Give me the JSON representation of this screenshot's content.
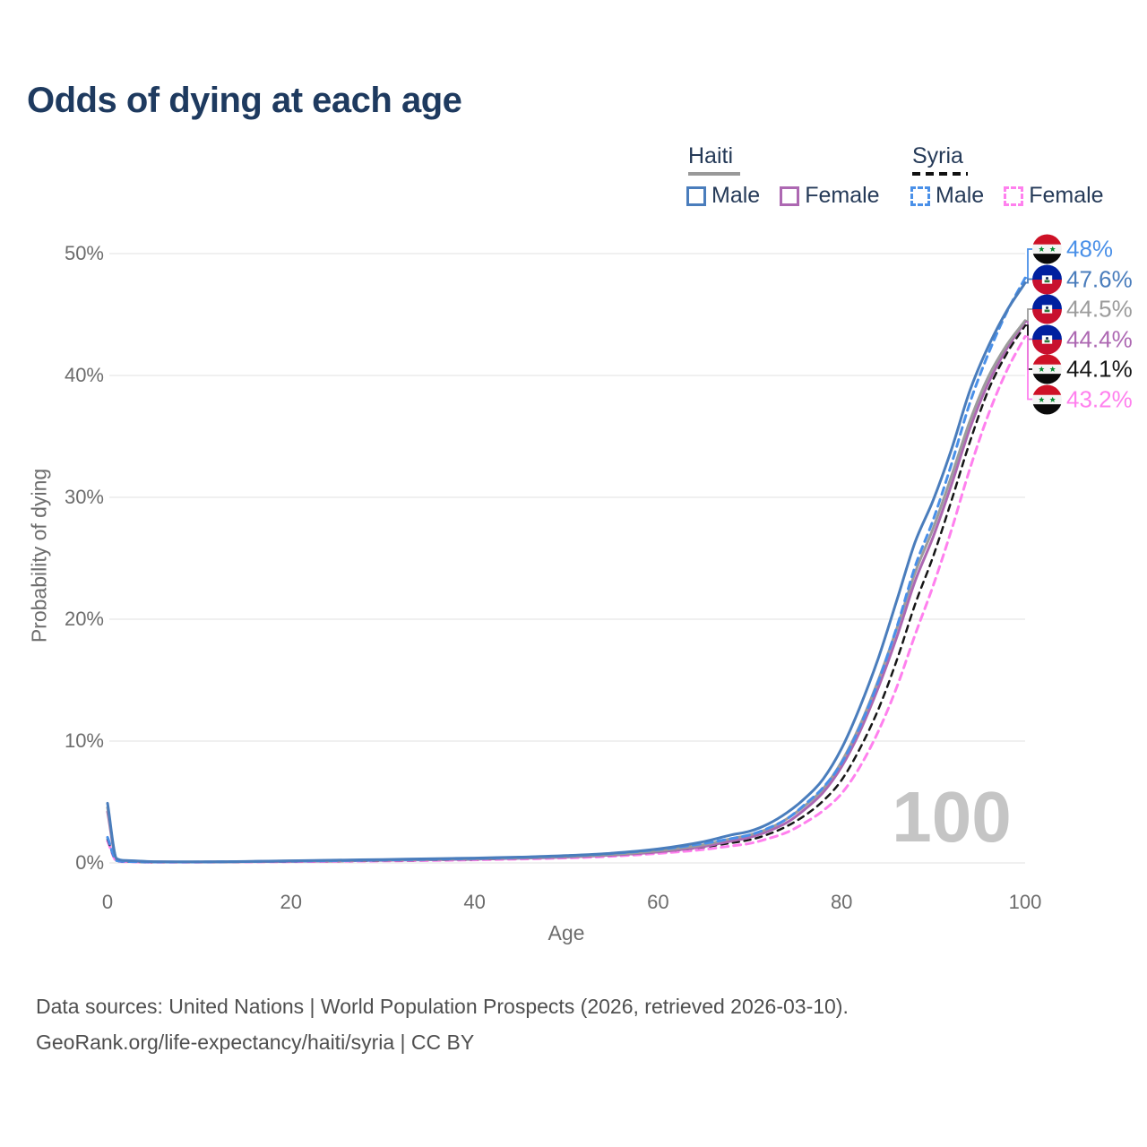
{
  "title": "Odds of dying at each age",
  "watermark": "100",
  "legend": {
    "haiti": {
      "label": "Haiti",
      "male_label": "Male",
      "female_label": "Female",
      "underline_style": "solid",
      "underline_color": "#999999"
    },
    "syria": {
      "label": "Syria",
      "male_label": "Male",
      "female_label": "Female",
      "underline_style": "dashed",
      "underline_color": "#111111"
    }
  },
  "footer": {
    "line1": "Data sources: United Nations | World Population Prospects (2026, retrieved 2026-03-10).",
    "line2": "GeoRank.org/life-expectancy/haiti/syria | CC BY"
  },
  "colors": {
    "title_text": "#1e3a5f",
    "legend_text": "#253a58",
    "axis_text": "#6d6d6d",
    "gridline": "#ebebeb",
    "watermark": "#c5c5c5",
    "haiti_male": "#4a7dbc",
    "haiti_female": "#ad68b2",
    "haiti_average": "#9c9c9c",
    "syria_male": "#4a90e8",
    "syria_female": "#ff80ee",
    "syria_average": "#161616"
  },
  "chart_data": {
    "type": "line",
    "title": "Odds of dying at each age",
    "xlabel": "Age",
    "ylabel": "Probability of dying",
    "xlim": [
      0,
      100
    ],
    "ylim": [
      0,
      50
    ],
    "grid": true,
    "legend_position": "top-right",
    "x_ticks": [
      0,
      20,
      40,
      60,
      80,
      100
    ],
    "y_ticks": [
      0,
      10,
      20,
      30,
      40,
      50
    ],
    "y_tick_labels": [
      "0%",
      "10%",
      "20%",
      "30%",
      "40%",
      "50%"
    ],
    "x": [
      0,
      1,
      2,
      5,
      10,
      15,
      20,
      25,
      30,
      35,
      40,
      45,
      50,
      55,
      60,
      65,
      68,
      70,
      72,
      74,
      76,
      78,
      80,
      82,
      84,
      86,
      88,
      90,
      92,
      94,
      96,
      98,
      100
    ],
    "series": [
      {
        "id": "syria-female",
        "name": "Syria Female",
        "country": "Syria",
        "flag": "syria",
        "color": "#ff80ee",
        "dash": "8 6",
        "width": 3,
        "end_label": "43.2%",
        "end_value": 43.2,
        "values": [
          1.8,
          0.16,
          0.1,
          0.05,
          0.06,
          0.08,
          0.1,
          0.13,
          0.16,
          0.2,
          0.25,
          0.32,
          0.41,
          0.55,
          0.78,
          1.1,
          1.4,
          1.6,
          2.0,
          2.5,
          3.3,
          4.3,
          5.7,
          7.9,
          10.8,
          14.4,
          18.7,
          22.8,
          27.4,
          32.4,
          36.8,
          40.4,
          43.2
        ]
      },
      {
        "id": "syria-average",
        "name": "Syria",
        "country": "Syria",
        "flag": "syria",
        "color": "#161616",
        "dash": "7 6",
        "width": 2.5,
        "end_label": "44.1%",
        "end_value": 44.1,
        "values": [
          1.95,
          0.18,
          0.11,
          0.06,
          0.07,
          0.09,
          0.12,
          0.15,
          0.19,
          0.24,
          0.3,
          0.38,
          0.48,
          0.64,
          0.9,
          1.3,
          1.65,
          1.9,
          2.35,
          3.0,
          3.9,
          5.1,
          6.8,
          9.4,
          12.6,
          16.6,
          21.2,
          25.2,
          29.8,
          34.6,
          38.8,
          41.8,
          44.1
        ]
      },
      {
        "id": "haiti-female",
        "name": "Haiti Female",
        "country": "Haiti",
        "flag": "haiti",
        "color": "#ad68b2",
        "dash": null,
        "width": 3,
        "end_label": "44.4%",
        "end_value": 44.4,
        "values": [
          4.2,
          0.3,
          0.16,
          0.08,
          0.07,
          0.1,
          0.13,
          0.17,
          0.21,
          0.26,
          0.32,
          0.38,
          0.48,
          0.64,
          0.9,
          1.35,
          1.8,
          2.1,
          2.6,
          3.3,
          4.4,
          5.8,
          7.9,
          10.8,
          14.4,
          18.5,
          23.1,
          26.8,
          31.1,
          35.7,
          39.4,
          42.2,
          44.4
        ]
      },
      {
        "id": "haiti-average",
        "name": "Haiti",
        "country": "Haiti",
        "flag": "haiti",
        "color": "#9c9c9c",
        "dash": null,
        "width": 3,
        "end_label": "44.5%",
        "end_value": 44.5,
        "values": [
          4.55,
          0.33,
          0.18,
          0.09,
          0.08,
          0.11,
          0.16,
          0.2,
          0.24,
          0.29,
          0.35,
          0.42,
          0.53,
          0.7,
          1.0,
          1.5,
          2.0,
          2.3,
          2.8,
          3.6,
          4.7,
          6.1,
          8.3,
          11.3,
          15.0,
          19.2,
          23.8,
          27.5,
          31.8,
          36.3,
          39.9,
          42.5,
          44.5
        ]
      },
      {
        "id": "syria-male",
        "name": "Syria Male",
        "country": "Syria",
        "flag": "syria",
        "color": "#4a90e8",
        "dash": "8 6",
        "width": 3,
        "end_label": "48%",
        "end_value": 48.0,
        "values": [
          2.1,
          0.2,
          0.12,
          0.07,
          0.08,
          0.11,
          0.15,
          0.19,
          0.24,
          0.3,
          0.37,
          0.46,
          0.58,
          0.78,
          1.1,
          1.6,
          2.0,
          2.3,
          2.85,
          3.6,
          4.8,
          6.2,
          8.2,
          11.2,
          14.9,
          19.3,
          24.3,
          28.2,
          32.8,
          37.8,
          41.8,
          45.2,
          48.0
        ]
      },
      {
        "id": "haiti-male",
        "name": "Haiti Male",
        "country": "Haiti",
        "flag": "haiti",
        "color": "#4a7dbc",
        "dash": null,
        "width": 3,
        "end_label": "47.6%",
        "end_value": 47.6,
        "values": [
          4.9,
          0.35,
          0.2,
          0.1,
          0.09,
          0.12,
          0.18,
          0.23,
          0.28,
          0.34,
          0.4,
          0.48,
          0.6,
          0.8,
          1.15,
          1.75,
          2.3,
          2.6,
          3.2,
          4.1,
          5.3,
          6.9,
          9.4,
          12.8,
          16.8,
          21.5,
          26.3,
          29.8,
          34.0,
          38.8,
          42.4,
          45.3,
          47.6
        ]
      }
    ]
  }
}
